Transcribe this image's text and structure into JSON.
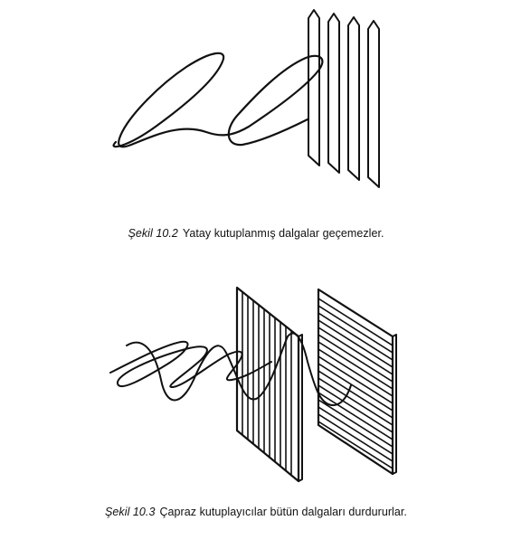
{
  "figures": [
    {
      "label": "Şekil 10.2",
      "caption": "Yatay kutuplanmış dalgalar geçemezler."
    },
    {
      "label": "Şekil 10.3",
      "caption": "Çapraz kutuplayıcılar bütün dalgaları durdururlar."
    }
  ]
}
